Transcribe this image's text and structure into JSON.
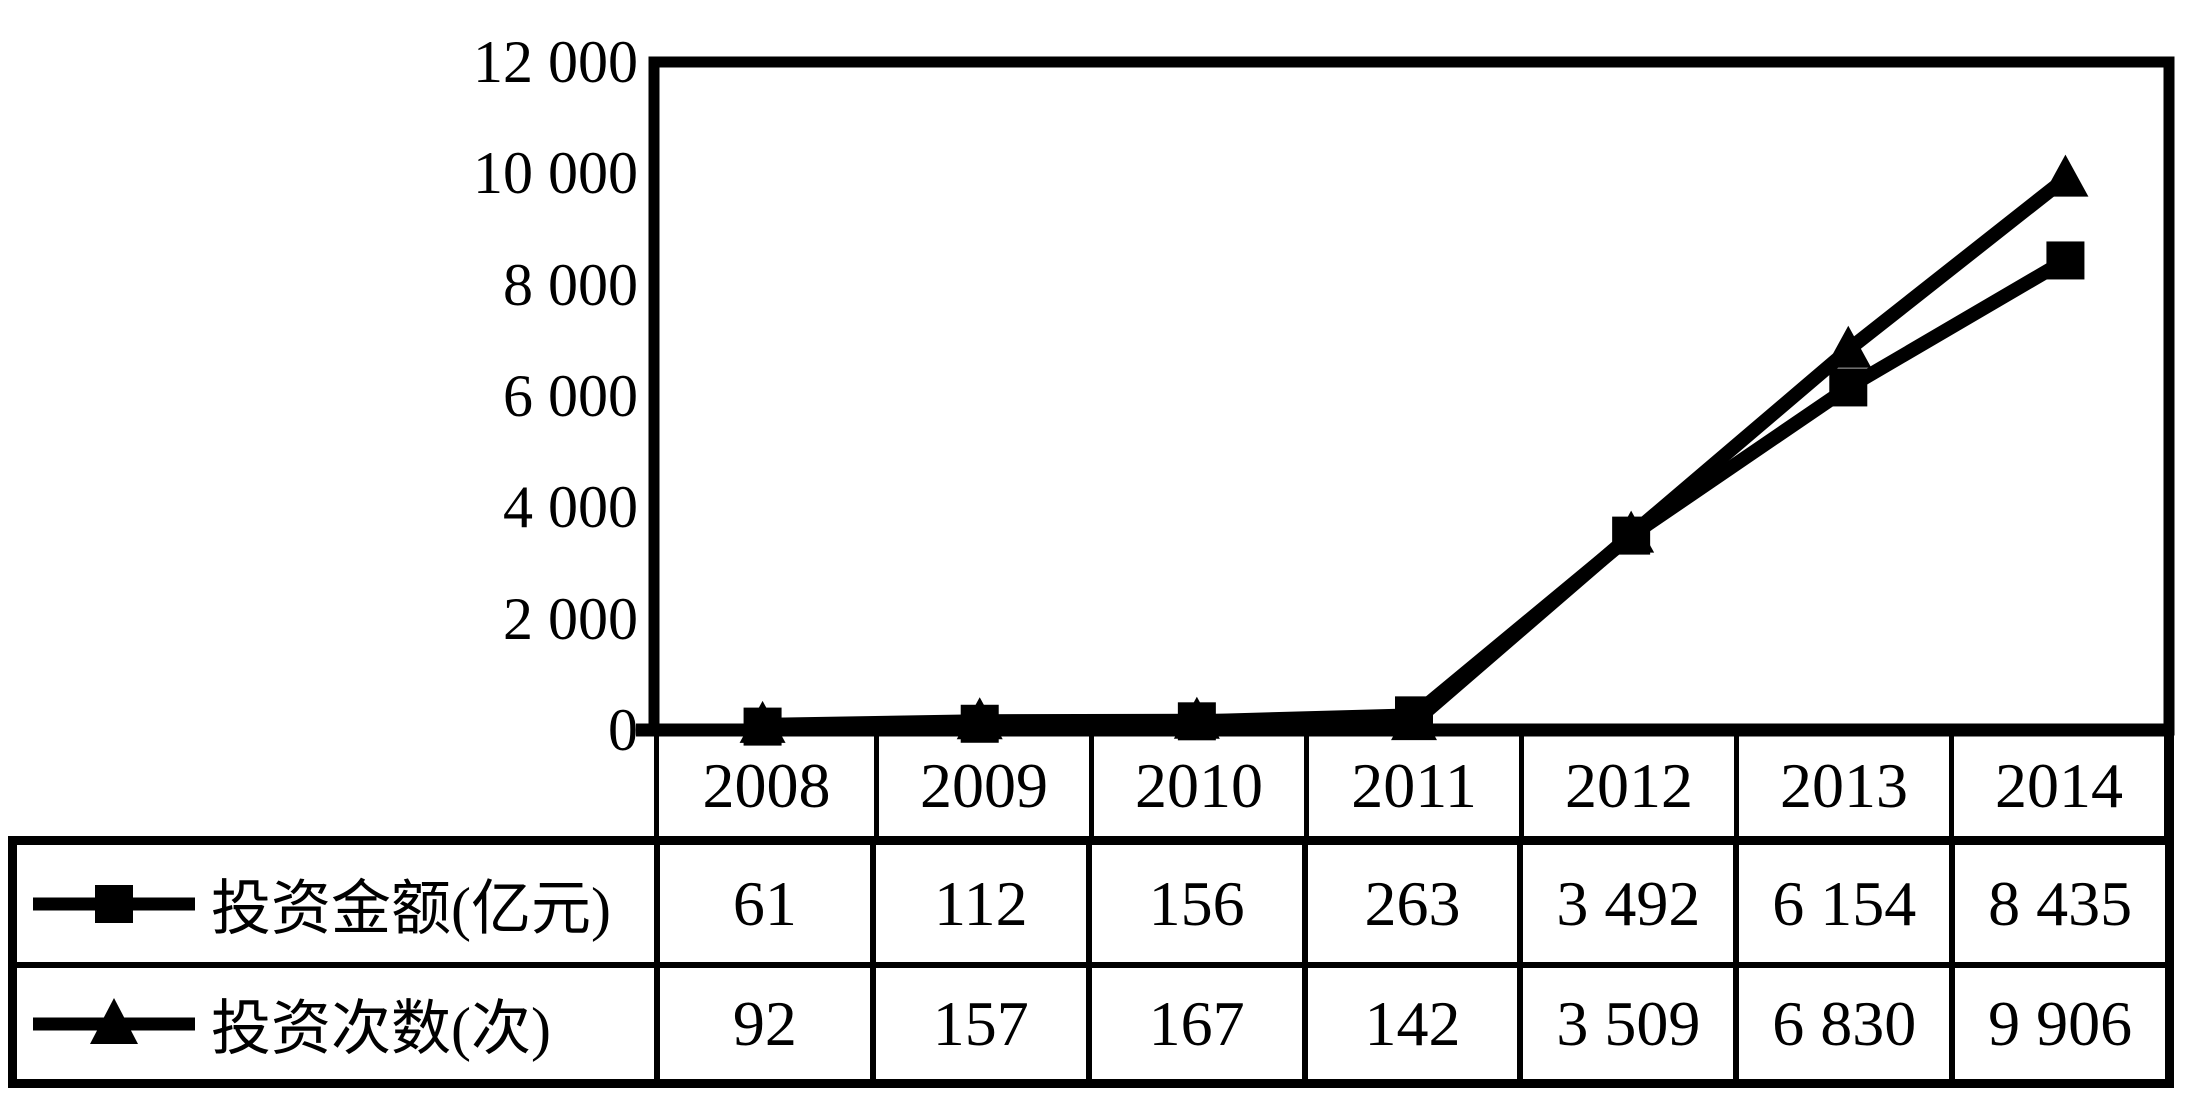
{
  "chart_data": {
    "type": "line",
    "title": "",
    "xlabel": "",
    "ylabel": "",
    "categories": [
      "2008",
      "2009",
      "2010",
      "2011",
      "2012",
      "2013",
      "2014"
    ],
    "series": [
      {
        "name": "投资金额(亿元)",
        "marker": "square",
        "values": [
          61,
          112,
          156,
          263,
          3492,
          6154,
          8435
        ]
      },
      {
        "name": "投资次数(次)",
        "marker": "triangle",
        "values": [
          92,
          157,
          167,
          142,
          3509,
          6830,
          9906
        ]
      }
    ],
    "ylim": [
      0,
      12000
    ],
    "ytick_step": 2000,
    "ytick_labels": [
      "0",
      "2 000",
      "4 000",
      "6 000",
      "8 000",
      "10 000",
      "12 000"
    ],
    "grid": false,
    "legend_position": "table-left",
    "line_color": "#000000",
    "background_color": "#ffffff"
  },
  "table": {
    "years": [
      "2008",
      "2009",
      "2010",
      "2011",
      "2012",
      "2013",
      "2014"
    ],
    "rows": [
      {
        "legend": "投资金额(亿元)",
        "marker": "square",
        "values": [
          "61",
          "112",
          "156",
          "263",
          "3 492",
          "6 154",
          "8 435"
        ]
      },
      {
        "legend": "投资次数(次)",
        "marker": "triangle",
        "values": [
          "92",
          "157",
          "167",
          "142",
          "3 509",
          "6 830",
          "9 906"
        ]
      }
    ]
  }
}
